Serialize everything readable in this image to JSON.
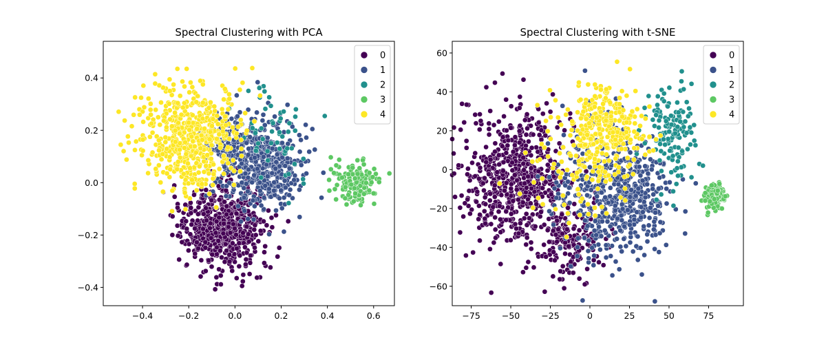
{
  "figure": {
    "panels": [
      {
        "title": "Spectral Clustering with PCA"
      },
      {
        "title": "Spectral Clustering with t-SNE"
      }
    ]
  },
  "chart_data": [
    {
      "type": "scatter",
      "title": "Spectral Clustering with PCA",
      "xlabel": "",
      "ylabel": "",
      "xlim": [
        -0.57,
        0.69
      ],
      "ylim": [
        -0.47,
        0.54
      ],
      "xticks": [
        -0.4,
        -0.2,
        0.0,
        0.2,
        0.4,
        0.6
      ],
      "xtick_labels": [
        "−0.4",
        "−0.2",
        "0.0",
        "0.2",
        "0.4",
        "0.6"
      ],
      "yticks": [
        -0.4,
        -0.2,
        0.0,
        0.2,
        0.4
      ],
      "ytick_labels": [
        "−0.4",
        "−0.2",
        "0.0",
        "0.2",
        "0.4"
      ],
      "grid": false,
      "legend": {
        "placement": "top-right",
        "entries": [
          "0",
          "1",
          "2",
          "3",
          "4"
        ]
      },
      "series": [
        {
          "label": "0",
          "color": "#440154",
          "clusters": [
            {
              "cx": -0.05,
              "cy": -0.17,
              "sx": 0.085,
              "sy": 0.075,
              "n": 650
            }
          ]
        },
        {
          "label": "1",
          "color": "#3b528b",
          "clusters": [
            {
              "cx": 0.12,
              "cy": 0.07,
              "sx": 0.085,
              "sy": 0.085,
              "n": 450
            },
            {
              "cx": -0.02,
              "cy": 0.14,
              "sx": 0.06,
              "sy": 0.06,
              "n": 120
            }
          ]
        },
        {
          "label": "2",
          "color": "#21908d",
          "clusters": [
            {
              "cx": 0.17,
              "cy": 0.19,
              "sx": 0.09,
              "sy": 0.1,
              "n": 55
            }
          ]
        },
        {
          "label": "3",
          "color": "#5dc863",
          "clusters": [
            {
              "cx": 0.52,
              "cy": 0.0,
              "sx": 0.045,
              "sy": 0.045,
              "n": 140
            }
          ]
        },
        {
          "label": "4",
          "color": "#fde725",
          "clusters": [
            {
              "cx": -0.2,
              "cy": 0.17,
              "sx": 0.11,
              "sy": 0.1,
              "n": 550
            }
          ]
        }
      ]
    },
    {
      "type": "scatter",
      "title": "Spectral Clustering with t-SNE",
      "xlabel": "",
      "ylabel": "",
      "xlim": [
        -87,
        97
      ],
      "ylim": [
        -70,
        66
      ],
      "xticks": [
        -75,
        -50,
        -25,
        0,
        25,
        50,
        75
      ],
      "xtick_labels": [
        "−75",
        "−50",
        "−25",
        "0",
        "25",
        "50",
        "75"
      ],
      "yticks": [
        -60,
        -40,
        -20,
        0,
        20,
        40,
        60
      ],
      "ytick_labels": [
        "−60",
        "−40",
        "−20",
        "0",
        "20",
        "40",
        "60"
      ],
      "grid": false,
      "legend": {
        "placement": "top-right",
        "entries": [
          "0",
          "1",
          "2",
          "3",
          "4"
        ]
      },
      "series": [
        {
          "label": "0",
          "color": "#440154",
          "clusters": [
            {
              "cx": -45,
              "cy": -5,
              "sx": 17,
              "sy": 17,
              "n": 650
            },
            {
              "cx": -12,
              "cy": -38,
              "sx": 9,
              "sy": 9,
              "n": 150
            }
          ]
        },
        {
          "label": "1",
          "color": "#3b528b",
          "clusters": [
            {
              "cx": 25,
              "cy": -15,
              "sx": 14,
              "sy": 15,
              "n": 400
            },
            {
              "cx": 3,
              "cy": -10,
              "sx": 15,
              "sy": 20,
              "n": 200
            }
          ]
        },
        {
          "label": "2",
          "color": "#21908d",
          "clusters": [
            {
              "cx": 52,
              "cy": 20,
              "sx": 7,
              "sy": 12,
              "n": 140
            }
          ]
        },
        {
          "label": "3",
          "color": "#5dc863",
          "clusters": [
            {
              "cx": 79,
              "cy": -14,
              "sx": 3.2,
              "sy": 3.2,
              "n": 170
            }
          ]
        },
        {
          "label": "4",
          "color": "#fde725",
          "clusters": [
            {
              "cx": 10,
              "cy": 22,
              "sx": 12,
              "sy": 12,
              "n": 300
            },
            {
              "cx": -10,
              "cy": 0,
              "sx": 15,
              "sy": 18,
              "n": 80
            }
          ]
        }
      ]
    }
  ]
}
